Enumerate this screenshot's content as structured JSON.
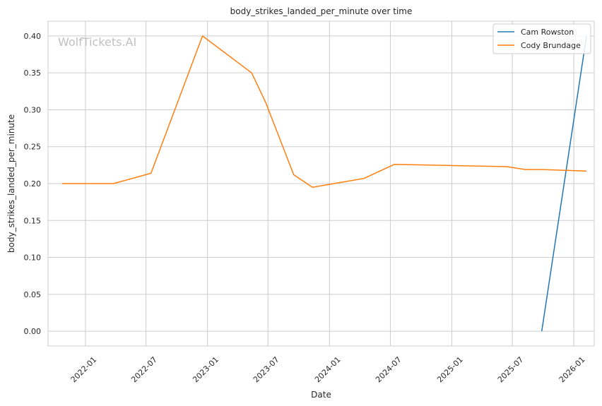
{
  "chart_data": {
    "type": "line",
    "title": "body_strikes_landed_per_minute over time",
    "xlabel": "Date",
    "ylabel": "body_strikes_landed_per_minute",
    "watermark": "WolfTickets.AI",
    "x_range": [
      "2021-09-11",
      "2026-03-03"
    ],
    "ylim": [
      -0.02,
      0.42
    ],
    "x_ticks": [
      {
        "date": "2022-01-01",
        "label": "2022-01"
      },
      {
        "date": "2022-07-01",
        "label": "2022-07"
      },
      {
        "date": "2023-01-01",
        "label": "2023-01"
      },
      {
        "date": "2023-07-01",
        "label": "2023-07"
      },
      {
        "date": "2024-01-01",
        "label": "2024-01"
      },
      {
        "date": "2024-07-01",
        "label": "2024-07"
      },
      {
        "date": "2025-01-01",
        "label": "2025-01"
      },
      {
        "date": "2025-07-01",
        "label": "2025-07"
      },
      {
        "date": "2026-01-01",
        "label": "2026-01"
      }
    ],
    "y_ticks": [
      {
        "value": 0.0,
        "label": "0.00"
      },
      {
        "value": 0.05,
        "label": "0.05"
      },
      {
        "value": 0.1,
        "label": "0.10"
      },
      {
        "value": 0.15,
        "label": "0.15"
      },
      {
        "value": 0.2,
        "label": "0.20"
      },
      {
        "value": 0.25,
        "label": "0.25"
      },
      {
        "value": 0.3,
        "label": "0.30"
      },
      {
        "value": 0.35,
        "label": "0.35"
      },
      {
        "value": 0.4,
        "label": "0.40"
      }
    ],
    "grid": true,
    "legend_position": "top-right",
    "series": [
      {
        "name": "Cam Rowston",
        "color": "#1f77b4",
        "points": [
          {
            "x": "2025-09-27",
            "y": 0.0
          },
          {
            "x": "2026-02-08",
            "y": 0.4
          }
        ]
      },
      {
        "name": "Cody Brundage",
        "color": "#ff7f0e",
        "points": [
          {
            "x": "2021-10-23",
            "y": 0.2
          },
          {
            "x": "2022-03-26",
            "y": 0.2
          },
          {
            "x": "2022-07-16",
            "y": 0.214
          },
          {
            "x": "2022-12-17",
            "y": 0.4
          },
          {
            "x": "2023-05-13",
            "y": 0.35
          },
          {
            "x": "2023-06-24",
            "y": 0.31
          },
          {
            "x": "2023-09-16",
            "y": 0.212
          },
          {
            "x": "2023-11-11",
            "y": 0.195
          },
          {
            "x": "2024-04-13",
            "y": 0.207
          },
          {
            "x": "2024-07-13",
            "y": 0.226
          },
          {
            "x": "2025-06-14",
            "y": 0.223
          },
          {
            "x": "2025-08-09",
            "y": 0.219
          },
          {
            "x": "2025-09-27",
            "y": 0.219
          },
          {
            "x": "2026-02-08",
            "y": 0.217
          }
        ]
      }
    ]
  }
}
